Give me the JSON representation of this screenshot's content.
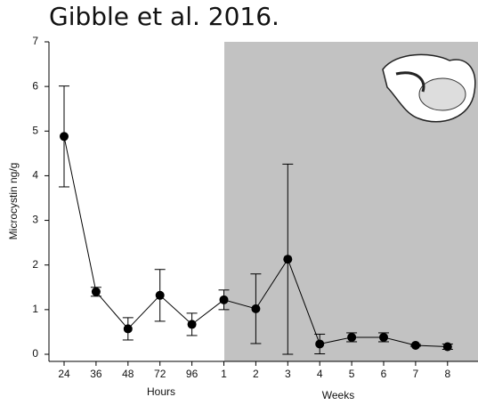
{
  "chart_data": {
    "type": "line",
    "title": "Gibble et al. 2016.",
    "y_label": "Microcystin ng/g",
    "x_group_labels": [
      "Hours",
      "Weeks"
    ],
    "categories": [
      "24",
      "36",
      "48",
      "72",
      "96",
      "1",
      "2",
      "3",
      "4",
      "5",
      "6",
      "7",
      "8"
    ],
    "values": [
      4.88,
      1.4,
      0.57,
      1.32,
      0.67,
      1.22,
      1.02,
      2.13,
      0.23,
      0.38,
      0.38,
      0.2,
      0.17
    ],
    "errors": [
      1.13,
      0.1,
      0.25,
      0.58,
      0.25,
      0.22,
      0.78,
      2.13,
      0.22,
      0.1,
      0.1,
      0.02,
      0.06
    ],
    "color": "#000000",
    "ylim": [
      0,
      7
    ],
    "yticks": [
      0,
      1,
      2,
      3,
      4,
      5,
      6,
      7
    ]
  }
}
